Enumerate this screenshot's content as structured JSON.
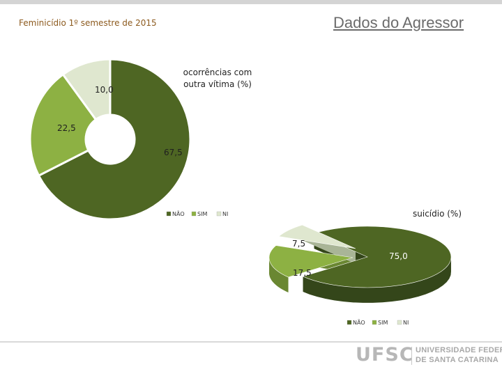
{
  "slide": {
    "period": "Feminicídio  1º semestre de 2015",
    "title": "Dados do Agressor"
  },
  "colors": {
    "nao": "#4e6623",
    "sim": "#8db143",
    "ni": "#dfe7cf",
    "nao_side": "#34461a",
    "sim_side": "#6a8732",
    "ni_side": "#a9b597",
    "period_text": "#8c5a1e",
    "title_text": "#6b6b6b"
  },
  "chart_data": [
    {
      "type": "pie",
      "title": "ocorrências com outra vítima  (%)",
      "title_lines": [
        "ocorrências com",
        "outra vítima  (%)"
      ],
      "categories": [
        "NÃO",
        "SIM",
        "NI"
      ],
      "values": [
        67.5,
        22.5,
        10.0
      ],
      "value_labels": [
        "67,5",
        "22,5",
        "10,0"
      ],
      "legend": [
        "NÃO",
        "SIM",
        "NI"
      ],
      "legend_position": "bottom",
      "style": "doughnut"
    },
    {
      "type": "pie",
      "title": "suicídio (%)",
      "categories": [
        "NÃO",
        "SIM",
        "NI"
      ],
      "values": [
        75.0,
        17.5,
        7.5
      ],
      "value_labels": [
        "75,0",
        "17,5",
        "7,5"
      ],
      "legend": [
        "NÃO",
        "SIM",
        "NI"
      ],
      "legend_position": "bottom",
      "style": "3d-exploded"
    }
  ],
  "logo": {
    "mark": "UFSC",
    "line1": "UNIVERSIDADE FEDERAL",
    "line2": "DE SANTA CATARINA"
  }
}
